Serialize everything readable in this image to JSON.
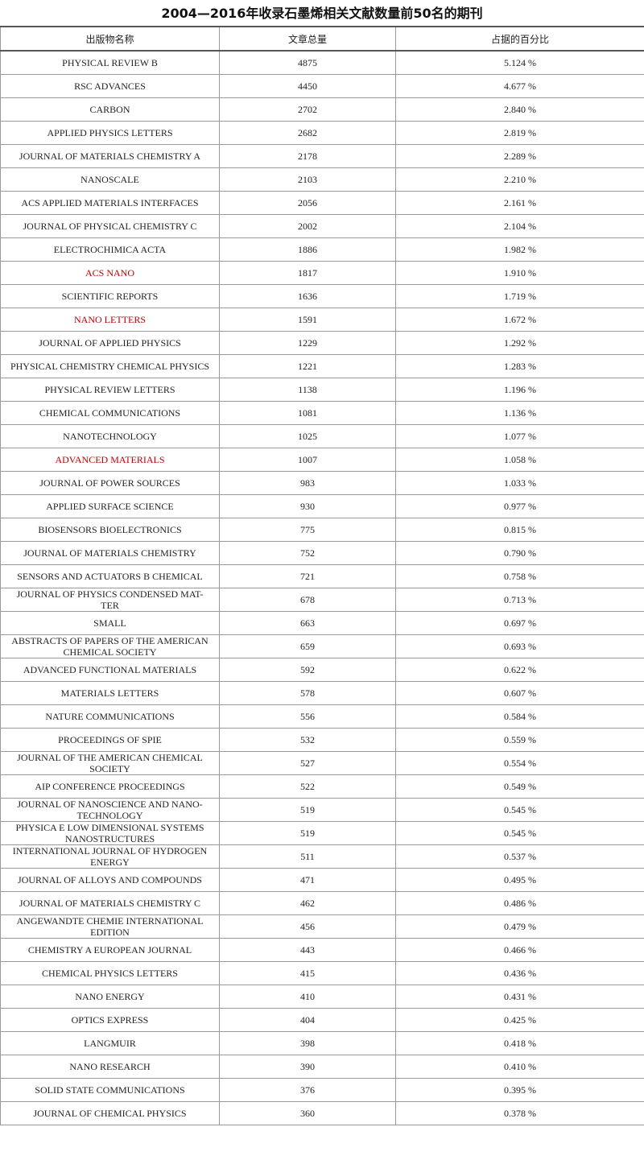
{
  "title": "2004—2016年收录石墨烯相关文献数量前50名的期刊",
  "table": {
    "header": [
      "出版物名称",
      "文章总量",
      "占据的百分比"
    ],
    "rows": [
      {
        "name": "PHYSICAL REVIEW B",
        "count": 4875,
        "percent": "5.124 %"
      },
      {
        "name": "RSC ADVANCES",
        "count": 4450,
        "percent": "4.677 %"
      },
      {
        "name": "CARBON",
        "count": 2702,
        "percent": "2.840 %"
      },
      {
        "name": "APPLIED PHYSICS LETTERS",
        "count": 2682,
        "percent": "2.819 %"
      },
      {
        "name": "JOURNAL OF MATERIALS CHEMISTRY A",
        "count": 2178,
        "percent": "2.289 %"
      },
      {
        "name": "NANOSCALE",
        "count": 2103,
        "percent": "2.210 %"
      },
      {
        "name": "ACS APPLIED MATERIALS INTERFACES",
        "count": 2056,
        "percent": "2.161 %"
      },
      {
        "name": "JOURNAL OF PHYSICAL CHEMISTRY C",
        "count": 2002,
        "percent": "2.104 %"
      },
      {
        "name": "ELECTROCHIMICA ACTA",
        "count": 1886,
        "percent": "1.982 %"
      },
      {
        "name": "ACS NANO",
        "count": 1817,
        "percent": "1.910 %",
        "color": "#c00000"
      },
      {
        "name": "SCIENTIFIC REPORTS",
        "count": 1636,
        "percent": "1.719 %"
      },
      {
        "name": "NANO LETTERS",
        "count": 1591,
        "percent": "1.672 %",
        "color": "#c00000"
      },
      {
        "name": "JOURNAL OF APPLIED PHYSICS",
        "count": 1229,
        "percent": "1.292 %"
      },
      {
        "name": "PHYSICAL CHEMISTRY CHEMICAL PHYSICS",
        "count": 1221,
        "percent": "1.283 %"
      },
      {
        "name": "PHYSICAL REVIEW LETTERS",
        "count": 1138,
        "percent": "1.196 %"
      },
      {
        "name": "CHEMICAL COMMUNICATIONS",
        "count": 1081,
        "percent": "1.136 %"
      },
      {
        "name": "NANOTECHNOLOGY",
        "count": 1025,
        "percent": "1.077 %"
      },
      {
        "name": "ADVANCED MATERIALS",
        "count": 1007,
        "percent": "1.058 %",
        "color": "#c00000"
      },
      {
        "name": "JOURNAL OF POWER SOURCES",
        "count": 983,
        "percent": "1.033 %"
      },
      {
        "name": "APPLIED SURFACE SCIENCE",
        "count": 930,
        "percent": "0.977 %"
      },
      {
        "name": "BIOSENSORS BIOELECTRONICS",
        "count": 775,
        "percent": "0.815 %"
      },
      {
        "name": "JOURNAL OF MATERIALS CHEMISTRY",
        "count": 752,
        "percent": "0.790 %"
      },
      {
        "name": "SENSORS AND ACTUATORS B CHEMICAL",
        "count": 721,
        "percent": "0.758 %"
      },
      {
        "name": "JOURNAL OF PHYSICS CONDENSED MAT-\nTER",
        "count": 678,
        "percent": "0.713 %"
      },
      {
        "name": "SMALL",
        "count": 663,
        "percent": "0.697 %"
      },
      {
        "name": "ABSTRACTS OF PAPERS OF THE AMERICAN\nCHEMICAL SOCIETY",
        "count": 659,
        "percent": "0.693 %"
      },
      {
        "name": "ADVANCED FUNCTIONAL MATERIALS",
        "count": 592,
        "percent": "0.622 %"
      },
      {
        "name": "MATERIALS LETTERS",
        "count": 578,
        "percent": "0.607 %"
      },
      {
        "name": "NATURE COMMUNICATIONS",
        "count": 556,
        "percent": "0.584 %"
      },
      {
        "name": "PROCEEDINGS OF SPIE",
        "count": 532,
        "percent": "0.559 %"
      },
      {
        "name": "JOURNAL OF THE AMERICAN CHEMICAL\nSOCIETY",
        "count": 527,
        "percent": "0.554 %"
      },
      {
        "name": "AIP CONFERENCE PROCEEDINGS",
        "count": 522,
        "percent": "0.549 %"
      },
      {
        "name": "JOURNAL OF NANOSCIENCE AND NANO-\nTECHNOLOGY",
        "count": 519,
        "percent": "0.545 %"
      },
      {
        "name": "PHYSICA E LOW DIMENSIONAL SYSTEMS\nNANOSTRUCTURES",
        "count": 519,
        "percent": "0.545 %"
      },
      {
        "name": "INTERNATIONAL JOURNAL OF HYDROGEN\nENERGY",
        "count": 511,
        "percent": "0.537 %"
      },
      {
        "name": "JOURNAL OF ALLOYS AND COMPOUNDS",
        "count": 471,
        "percent": "0.495 %"
      },
      {
        "name": "JOURNAL OF MATERIALS CHEMISTRY C",
        "count": 462,
        "percent": "0.486 %"
      },
      {
        "name": "ANGEWANDTE CHEMIE INTERNATIONAL\nEDITION",
        "count": 456,
        "percent": "0.479 %"
      },
      {
        "name": "CHEMISTRY A EUROPEAN JOURNAL",
        "count": 443,
        "percent": "0.466 %"
      },
      {
        "name": "CHEMICAL PHYSICS LETTERS",
        "count": 415,
        "percent": "0.436 %"
      },
      {
        "name": "NANO ENERGY",
        "count": 410,
        "percent": "0.431 %"
      },
      {
        "name": "OPTICS EXPRESS",
        "count": 404,
        "percent": "0.425 %"
      },
      {
        "name": "LANGMUIR",
        "count": 398,
        "percent": "0.418 %"
      },
      {
        "name": "NANO RESEARCH",
        "count": 390,
        "percent": "0.410 %"
      },
      {
        "name": "SOLID STATE COMMUNICATIONS",
        "count": 376,
        "percent": "0.395 %"
      },
      {
        "name": "JOURNAL OF CHEMICAL PHYSICS",
        "count": 360,
        "percent": "0.378 %"
      }
    ]
  }
}
